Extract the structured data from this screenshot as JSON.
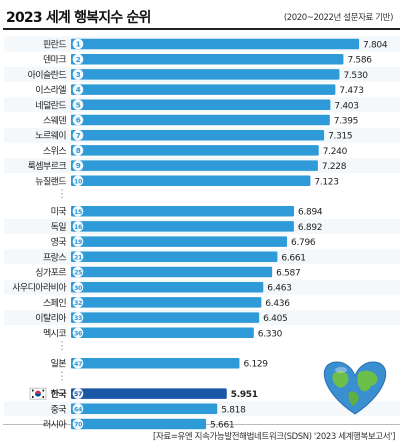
{
  "title": "2023 세계 행복지수 순위",
  "subtitle": "(2020~2022년 설문자료 기반)",
  "source": "[자료=유엔 지속가능발전해법네트워크(SDSN) '2023 세계행복보고서']",
  "colors": {
    "bar": "#2f9ad8",
    "bar_highlight": "#1a56a6",
    "gap_dots": "#999999"
  },
  "chart_data": {
    "type": "bar",
    "orientation": "horizontal",
    "title": "2023 세계 행복지수 순위",
    "subtitle": "(2020~2022년 설문자료 기반)",
    "highlight": "한국",
    "rows": [
      {
        "country": "핀란드",
        "rank": 1,
        "value": 7.804
      },
      {
        "country": "덴마크",
        "rank": 2,
        "value": 7.586
      },
      {
        "country": "아이슬란드",
        "rank": 3,
        "value": 7.53
      },
      {
        "country": "이스라엘",
        "rank": 4,
        "value": 7.473
      },
      {
        "country": "네덜란드",
        "rank": 5,
        "value": 7.403
      },
      {
        "country": "스웨덴",
        "rank": 6,
        "value": 7.395
      },
      {
        "country": "노르웨이",
        "rank": 7,
        "value": 7.315
      },
      {
        "country": "스위스",
        "rank": 8,
        "value": 7.24
      },
      {
        "country": "룩셈부르크",
        "rank": 9,
        "value": 7.228
      },
      {
        "country": "뉴질랜드",
        "rank": 10,
        "value": 7.123
      },
      {
        "gap": true
      },
      {
        "country": "미국",
        "rank": 15,
        "value": 6.894
      },
      {
        "country": "독일",
        "rank": 16,
        "value": 6.892
      },
      {
        "country": "영국",
        "rank": 19,
        "value": 6.796
      },
      {
        "country": "프랑스",
        "rank": 21,
        "value": 6.661
      },
      {
        "country": "싱가포르",
        "rank": 25,
        "value": 6.587
      },
      {
        "country": "사우디아라비아",
        "rank": 30,
        "value": 6.463
      },
      {
        "country": "스페인",
        "rank": 32,
        "value": 6.436
      },
      {
        "country": "이탈리아",
        "rank": 33,
        "value": 6.405
      },
      {
        "country": "멕시코",
        "rank": 36,
        "value": 6.33
      },
      {
        "gap": true
      },
      {
        "country": "일본",
        "rank": 47,
        "value": 6.129
      },
      {
        "gap": true
      },
      {
        "country": "한국",
        "rank": 57,
        "value": 5.951,
        "highlight": true
      },
      {
        "country": "중국",
        "rank": 64,
        "value": 5.818
      },
      {
        "country": "러시아",
        "rank": 70,
        "value": 5.661
      }
    ]
  }
}
